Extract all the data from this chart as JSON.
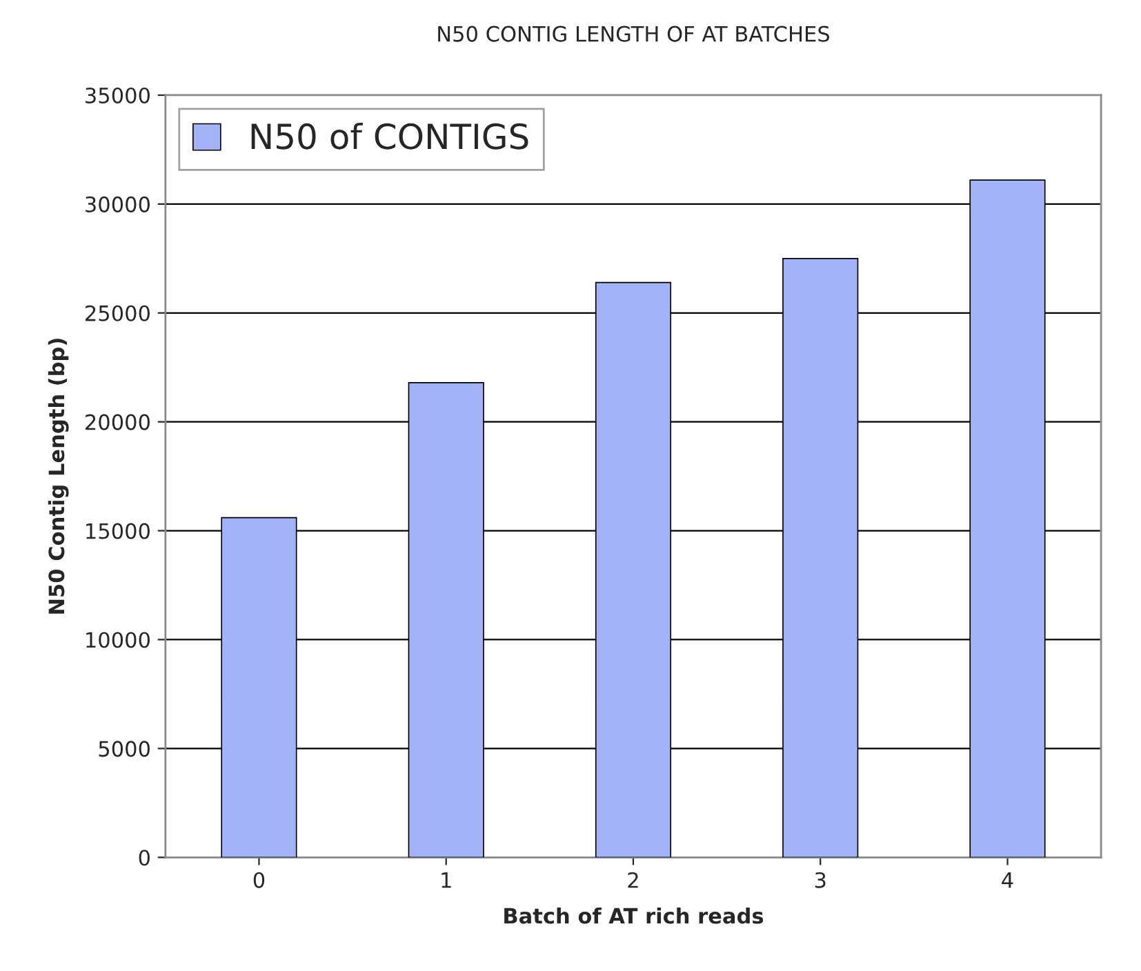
{
  "chart_data": {
    "type": "bar",
    "title": "N50 CONTIG LENGTH OF AT BATCHES",
    "xlabel": "Batch of AT rich reads",
    "ylabel": "N50 Contig Length (bp)",
    "categories": [
      "0",
      "1",
      "2",
      "3",
      "4"
    ],
    "series": [
      {
        "name": "N50 of CONTIGS",
        "color": "#a3b3f7",
        "values": [
          15600,
          21800,
          26400,
          27500,
          31100
        ]
      }
    ],
    "ylim": [
      0,
      35000
    ],
    "yticks": [
      0,
      5000,
      10000,
      15000,
      20000,
      25000,
      30000,
      35000
    ],
    "grid": "y",
    "legend": "top left"
  }
}
